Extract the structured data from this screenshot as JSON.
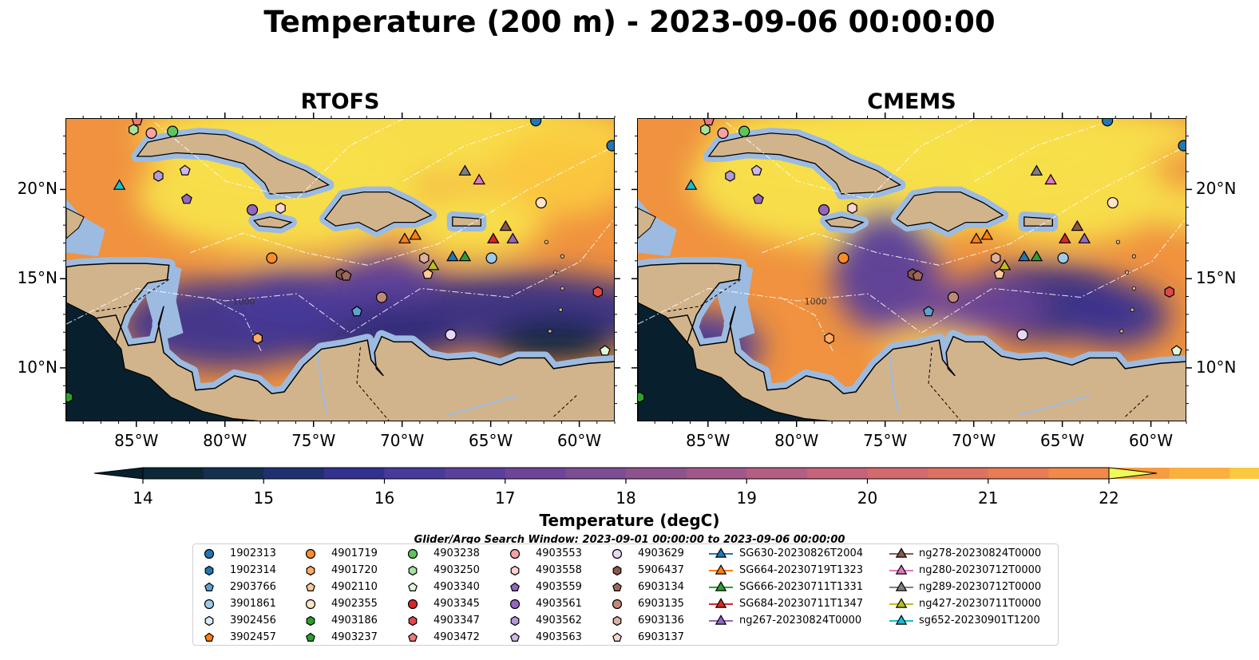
{
  "title": "Temperature (200 m) - 2023-09-06 00:00:00",
  "panels": [
    {
      "title": "RTOFS"
    },
    {
      "title": "CMEMS"
    }
  ],
  "map_extent": {
    "lon": [
      -89,
      -58
    ],
    "lat": [
      7,
      24
    ]
  },
  "lon_ticks": [
    -85,
    -80,
    -75,
    -70,
    -65,
    -60
  ],
  "lon_tick_labels": [
    "85°W",
    "80°W",
    "75°W",
    "70°W",
    "65°W",
    "60°W"
  ],
  "lat_ticks": [
    10,
    15,
    20
  ],
  "lat_tick_labels": [
    "10°N",
    "15°N",
    "20°N"
  ],
  "contour_labels": [
    "1000"
  ],
  "colors": {
    "land": "#d2b48c",
    "shelf": "#9dbbe0",
    "deep": "#08202e"
  },
  "colorbar": {
    "min": 14,
    "max": 22,
    "step": 0.5,
    "ticks": [
      "14",
      "15",
      "16",
      "17",
      "18",
      "19",
      "20",
      "21",
      "22"
    ],
    "label": "Temperature (degC)",
    "colors": [
      "#0c2736",
      "#13304f",
      "#20306f",
      "#333190",
      "#473a9a",
      "#5a3f9c",
      "#6c4598",
      "#7d4c94",
      "#8e528e",
      "#a05889",
      "#b35e82",
      "#c5637a",
      "#d36a6e",
      "#de7262",
      "#e97c55",
      "#f38948",
      "#f89a40",
      "#fbaf3d",
      "#fbc83f",
      "#f8e24b"
    ]
  },
  "legend": {
    "title": "Glider/Argo Search Window: 2023-09-01 00:00:00 to 2023-09-06 00:00:00",
    "items": [
      {
        "label": "1902313",
        "marker": "circle",
        "color": "#1f77b4"
      },
      {
        "label": "1902314",
        "marker": "hexagon",
        "color": "#1f77b4"
      },
      {
        "label": "2903766",
        "marker": "pentagon",
        "color": "#5fa2d0"
      },
      {
        "label": "3901861",
        "marker": "circle",
        "color": "#9ecae9"
      },
      {
        "label": "3902456",
        "marker": "hexagon",
        "color": "#d6ecfa"
      },
      {
        "label": "3902457",
        "marker": "pentagon",
        "color": "#ff7f0e"
      },
      {
        "label": "4901719",
        "marker": "circle",
        "color": "#ff8c2a"
      },
      {
        "label": "4901720",
        "marker": "hexagon",
        "color": "#ffab66"
      },
      {
        "label": "4902110",
        "marker": "pentagon",
        "color": "#ffc99a"
      },
      {
        "label": "4902355",
        "marker": "circle",
        "color": "#fee4c8"
      },
      {
        "label": "4903186",
        "marker": "hexagon",
        "color": "#2ca02c"
      },
      {
        "label": "4903237",
        "marker": "pentagon",
        "color": "#2ca02c"
      },
      {
        "label": "4903238",
        "marker": "circle",
        "color": "#5ec45e"
      },
      {
        "label": "4903250",
        "marker": "hexagon",
        "color": "#a6e3a0"
      },
      {
        "label": "4903340",
        "marker": "pentagon",
        "color": "#e0f6d6"
      },
      {
        "label": "4903345",
        "marker": "circle",
        "color": "#d62728"
      },
      {
        "label": "4903347",
        "marker": "hexagon",
        "color": "#e04848"
      },
      {
        "label": "4903472",
        "marker": "pentagon",
        "color": "#f07a7a"
      },
      {
        "label": "4903553",
        "marker": "circle",
        "color": "#f5a3a3"
      },
      {
        "label": "4903558",
        "marker": "hexagon",
        "color": "#fbd3d3"
      },
      {
        "label": "4903559",
        "marker": "pentagon",
        "color": "#9467bd"
      },
      {
        "label": "4903561",
        "marker": "circle",
        "color": "#9467bd"
      },
      {
        "label": "4903562",
        "marker": "hexagon",
        "color": "#b29ad7"
      },
      {
        "label": "4903563",
        "marker": "pentagon",
        "color": "#cdb8e6"
      },
      {
        "label": "4903629",
        "marker": "circle",
        "color": "#e6d7f3"
      },
      {
        "label": "5906437",
        "marker": "hexagon",
        "color": "#8c564b"
      },
      {
        "label": "6903134",
        "marker": "pentagon",
        "color": "#a0685c"
      },
      {
        "label": "6903135",
        "marker": "circle",
        "color": "#c08878"
      },
      {
        "label": "6903136",
        "marker": "hexagon",
        "color": "#ddb0a0"
      },
      {
        "label": "6903137",
        "marker": "pentagon",
        "color": "#f5d8cc"
      },
      {
        "label": "SG630-20230826T2004",
        "marker": "line-triangle",
        "color": "#1f77b4"
      },
      {
        "label": "SG664-20230719T1323",
        "marker": "line-triangle",
        "color": "#ff7f0e"
      },
      {
        "label": "SG666-20230711T1331",
        "marker": "line-triangle",
        "color": "#2ca02c"
      },
      {
        "label": "SG684-20230711T1347",
        "marker": "line-triangle",
        "color": "#d62728"
      },
      {
        "label": "ng267-20230824T0000",
        "marker": "line-triangle",
        "color": "#9467bd"
      },
      {
        "label": "ng278-20230824T0000",
        "marker": "line-triangle",
        "color": "#8c564b"
      },
      {
        "label": "ng280-20230712T0000",
        "marker": "line-triangle",
        "color": "#e377c2"
      },
      {
        "label": "ng289-20230712T0000",
        "marker": "line-triangle",
        "color": "#7f7f7f"
      },
      {
        "label": "ng427-20230711T0000",
        "marker": "line-triangle",
        "color": "#bcbd22"
      },
      {
        "label": "sg652-20230901T1200",
        "marker": "line-triangle",
        "color": "#17becf"
      }
    ]
  },
  "platforms": [
    {
      "id": "1902313",
      "lon": -58.2,
      "lat": 22.5
    },
    {
      "id": "1902313",
      "lon": -62.5,
      "lat": 23.9
    },
    {
      "id": "2903766",
      "lon": -72.6,
      "lat": 13.2
    },
    {
      "id": "3901861",
      "lon": -65.0,
      "lat": 16.2
    },
    {
      "id": "4901719",
      "lon": -77.4,
      "lat": 16.2
    },
    {
      "id": "4901720",
      "lon": -78.2,
      "lat": 11.7
    },
    {
      "id": "4902110",
      "lon": -68.6,
      "lat": 15.3
    },
    {
      "id": "4902355",
      "lon": -62.2,
      "lat": 19.3
    },
    {
      "id": "4903186",
      "lon": -88.9,
      "lat": 8.4
    },
    {
      "id": "4903238",
      "lon": -83.0,
      "lat": 23.3
    },
    {
      "id": "4903250",
      "lon": -85.2,
      "lat": 23.4
    },
    {
      "id": "4903340",
      "lon": -58.6,
      "lat": 11.0
    },
    {
      "id": "4903347",
      "lon": -59.0,
      "lat": 14.3
    },
    {
      "id": "4903472",
      "lon": -85.0,
      "lat": 23.9
    },
    {
      "id": "4903553",
      "lon": -84.2,
      "lat": 23.2
    },
    {
      "id": "4903558",
      "lon": -76.9,
      "lat": 19.0
    },
    {
      "id": "4903559",
      "lon": -82.2,
      "lat": 19.5
    },
    {
      "id": "4903561",
      "lon": -78.5,
      "lat": 18.9
    },
    {
      "id": "4903562",
      "lon": -83.8,
      "lat": 20.8
    },
    {
      "id": "4903563",
      "lon": -82.3,
      "lat": 21.1
    },
    {
      "id": "4903629",
      "lon": -67.3,
      "lat": 11.9
    },
    {
      "id": "5906437",
      "lon": -73.5,
      "lat": 15.3
    },
    {
      "id": "6903134",
      "lon": -73.2,
      "lat": 15.2
    },
    {
      "id": "6903135",
      "lon": -71.2,
      "lat": 14.0
    },
    {
      "id": "6903136",
      "lon": -68.8,
      "lat": 16.2
    },
    {
      "id": "SG630-20230826T2004",
      "lon": -67.2,
      "lat": 16.3
    },
    {
      "id": "SG664-20230719T1323",
      "lon": -69.9,
      "lat": 17.3
    },
    {
      "id": "SG664-20230719T1323",
      "lon": -69.3,
      "lat": 17.5
    },
    {
      "id": "SG666-20230711T1331",
      "lon": -66.5,
      "lat": 16.3
    },
    {
      "id": "SG684-20230711T1347",
      "lon": -64.9,
      "lat": 17.3
    },
    {
      "id": "ng267-20230824T0000",
      "lon": -63.8,
      "lat": 17.3
    },
    {
      "id": "ng278-20230824T0000",
      "lon": -64.2,
      "lat": 18.0
    },
    {
      "id": "ng280-20230712T0000",
      "lon": -65.7,
      "lat": 20.6
    },
    {
      "id": "ng289-20230712T0000",
      "lon": -66.5,
      "lat": 21.1
    },
    {
      "id": "ng427-20230711T0000",
      "lon": -68.3,
      "lat": 15.8
    },
    {
      "id": "sg652-20230901T1200",
      "lon": -86.0,
      "lat": 20.3
    }
  ]
}
